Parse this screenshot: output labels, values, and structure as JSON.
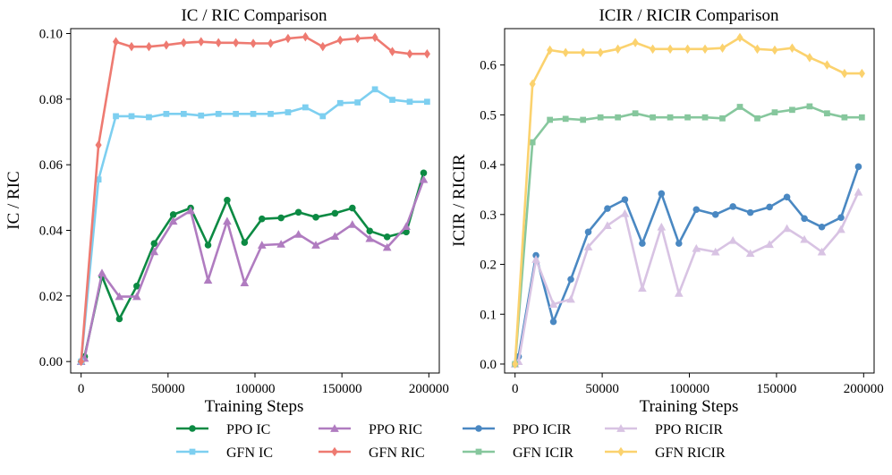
{
  "chart_data": [
    {
      "type": "line",
      "title": "IC / RIC Comparison",
      "xlabel": "Training Steps",
      "ylabel": "IC / RIC",
      "xlim": [
        -6000,
        206000
      ],
      "ylim": [
        -0.0035,
        0.1015
      ],
      "xticks": [
        0,
        50000,
        100000,
        150000,
        200000
      ],
      "xtick_labels": [
        "0",
        "50000",
        "100000",
        "150000",
        "200000"
      ],
      "yticks": [
        0,
        0.02,
        0.04,
        0.06,
        0.08,
        0.1
      ],
      "ytick_labels": [
        "0.00",
        "0.02",
        "0.04",
        "0.06",
        "0.08",
        "0.10"
      ],
      "x": [
        0,
        2000,
        10000,
        20000,
        30000,
        40000,
        50000,
        60000,
        70000,
        80000,
        90000,
        100000,
        110000,
        120000,
        130000,
        140000,
        150000,
        160000,
        170000,
        180000,
        190000,
        200000
      ],
      "series": [
        {
          "name": "PPO IC",
          "color": "#0c8a43",
          "marker": "circle",
          "x": [
            0,
            2000,
            12000,
            22000,
            32000,
            42000,
            53000,
            63000,
            73000,
            84000,
            94000,
            104000,
            115000,
            125000,
            135000,
            146000,
            156000,
            166000,
            176000,
            187000,
            197000
          ],
          "values": [
            0.0,
            0.0015,
            0.026,
            0.013,
            0.023,
            0.036,
            0.0448,
            0.0468,
            0.0355,
            0.0492,
            0.0363,
            0.0435,
            0.0438,
            0.0455,
            0.044,
            0.0452,
            0.0468,
            0.0398,
            0.038,
            0.0395,
            0.0575
          ]
        },
        {
          "name": "PPO RIC",
          "color": "#b07cc0",
          "marker": "triangle",
          "x": [
            0,
            2000,
            12000,
            22000,
            32000,
            42000,
            53000,
            63000,
            73000,
            84000,
            94000,
            104000,
            115000,
            125000,
            135000,
            146000,
            156000,
            166000,
            176000,
            187000,
            197000
          ],
          "values": [
            0.0,
            0.001,
            0.027,
            0.0198,
            0.0198,
            0.0335,
            0.0428,
            0.046,
            0.0248,
            0.0428,
            0.024,
            0.0355,
            0.0358,
            0.0388,
            0.0355,
            0.0382,
            0.0418,
            0.0375,
            0.0348,
            0.0412,
            0.0555
          ]
        },
        {
          "name": "GFN IC",
          "color": "#7dcff0",
          "marker": "square",
          "x": [
            0,
            10000,
            20000,
            29000,
            39000,
            49000,
            59000,
            69000,
            79000,
            89000,
            99000,
            109000,
            119000,
            129000,
            139000,
            149000,
            159000,
            169000,
            179000,
            189000,
            199000
          ],
          "values": [
            0.0,
            0.0555,
            0.0748,
            0.0748,
            0.0745,
            0.0755,
            0.0755,
            0.075,
            0.0755,
            0.0755,
            0.0755,
            0.0755,
            0.076,
            0.0775,
            0.0748,
            0.0788,
            0.079,
            0.083,
            0.0798,
            0.0792,
            0.0792
          ]
        },
        {
          "name": "GFN RIC",
          "color": "#ee7a71",
          "marker": "diamond",
          "x": [
            0,
            10000,
            20000,
            29000,
            39000,
            49000,
            59000,
            69000,
            79000,
            89000,
            99000,
            109000,
            119000,
            129000,
            139000,
            149000,
            159000,
            169000,
            179000,
            189000,
            199000
          ],
          "values": [
            0.0,
            0.066,
            0.0975,
            0.096,
            0.096,
            0.0965,
            0.0972,
            0.0975,
            0.0972,
            0.0972,
            0.097,
            0.097,
            0.0985,
            0.099,
            0.096,
            0.098,
            0.0985,
            0.0988,
            0.0945,
            0.0938,
            0.0938
          ]
        }
      ]
    },
    {
      "type": "line",
      "title": "ICIR / RICIR Comparison",
      "xlabel": "Training Steps",
      "ylabel": "ICIR / RICIR",
      "xlim": [
        -6000,
        206000
      ],
      "ylim": [
        -0.018,
        0.673
      ],
      "xticks": [
        0,
        50000,
        100000,
        150000,
        200000
      ],
      "xtick_labels": [
        "0",
        "50000",
        "100000",
        "150000",
        "200000"
      ],
      "yticks": [
        0,
        0.1,
        0.2,
        0.3,
        0.4,
        0.5,
        0.6
      ],
      "ytick_labels": [
        "0.0",
        "0.1",
        "0.2",
        "0.3",
        "0.4",
        "0.5",
        "0.6"
      ],
      "series": [
        {
          "name": "PPO ICIR",
          "color": "#4a88c2",
          "marker": "circle",
          "x": [
            0,
            2000,
            12000,
            22000,
            32000,
            42000,
            53000,
            63000,
            73000,
            84000,
            94000,
            104000,
            115000,
            125000,
            135000,
            146000,
            156000,
            166000,
            176000,
            187000,
            197000
          ],
          "values": [
            0.0,
            0.015,
            0.218,
            0.085,
            0.17,
            0.265,
            0.312,
            0.33,
            0.242,
            0.342,
            0.242,
            0.31,
            0.3,
            0.316,
            0.304,
            0.315,
            0.335,
            0.292,
            0.275,
            0.294,
            0.396
          ]
        },
        {
          "name": "PPO RICIR",
          "color": "#d8c3e3",
          "marker": "triangle",
          "x": [
            0,
            2000,
            12000,
            22000,
            32000,
            42000,
            53000,
            63000,
            73000,
            84000,
            94000,
            104000,
            115000,
            125000,
            135000,
            146000,
            156000,
            166000,
            176000,
            187000,
            197000
          ],
          "values": [
            0.0,
            0.005,
            0.21,
            0.12,
            0.13,
            0.235,
            0.278,
            0.302,
            0.152,
            0.275,
            0.142,
            0.232,
            0.225,
            0.248,
            0.222,
            0.24,
            0.272,
            0.25,
            0.225,
            0.27,
            0.345
          ]
        },
        {
          "name": "GFN ICIR",
          "color": "#86c79d",
          "marker": "square",
          "x": [
            0,
            10000,
            20000,
            29000,
            39000,
            49000,
            59000,
            69000,
            79000,
            89000,
            99000,
            109000,
            119000,
            129000,
            139000,
            149000,
            159000,
            169000,
            179000,
            189000,
            199000
          ],
          "values": [
            0.0,
            0.445,
            0.49,
            0.492,
            0.49,
            0.495,
            0.495,
            0.503,
            0.495,
            0.495,
            0.495,
            0.495,
            0.493,
            0.516,
            0.493,
            0.505,
            0.51,
            0.517,
            0.503,
            0.495,
            0.495
          ]
        },
        {
          "name": "GFN RICIR",
          "color": "#fbd26e",
          "marker": "diamond",
          "x": [
            0,
            10000,
            20000,
            29000,
            39000,
            49000,
            59000,
            69000,
            79000,
            89000,
            99000,
            109000,
            119000,
            129000,
            139000,
            149000,
            159000,
            169000,
            179000,
            189000,
            199000
          ],
          "values": [
            0.0,
            0.562,
            0.63,
            0.625,
            0.625,
            0.625,
            0.632,
            0.645,
            0.632,
            0.632,
            0.632,
            0.632,
            0.634,
            0.655,
            0.632,
            0.63,
            0.634,
            0.615,
            0.6,
            0.583,
            0.583
          ]
        }
      ]
    }
  ],
  "legend": {
    "placement": "bottom-center",
    "rows": [
      [
        "PPO IC",
        "PPO RIC",
        "PPO ICIR",
        "PPO RICIR"
      ],
      [
        "GFN IC",
        "GFN RIC",
        "GFN ICIR",
        "GFN RICIR"
      ]
    ]
  }
}
